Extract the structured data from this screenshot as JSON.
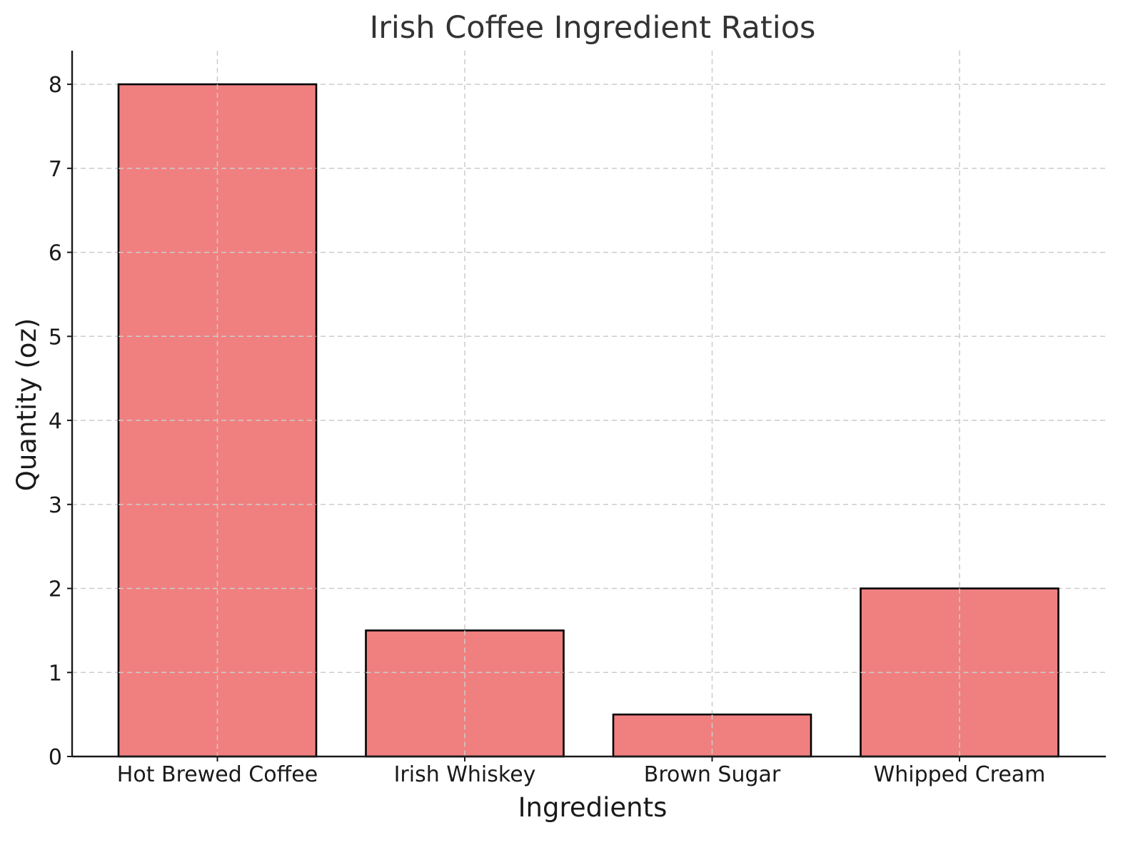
{
  "chart_data": {
    "type": "bar",
    "title": "Irish Coffee Ingredient Ratios",
    "xlabel": "Ingredients",
    "ylabel": "Quantity (oz)",
    "categories": [
      "Hot Brewed Coffee",
      "Irish Whiskey",
      "Brown Sugar",
      "Whipped Cream"
    ],
    "values": [
      8,
      1.5,
      0.5,
      2
    ],
    "ylim": [
      0,
      8.4
    ],
    "yticks": [
      0,
      1,
      2,
      3,
      4,
      5,
      6,
      7,
      8
    ],
    "grid": true,
    "legend": "none",
    "colors": {
      "bar_fill": "#f08080",
      "bar_edge": "#000000"
    }
  }
}
